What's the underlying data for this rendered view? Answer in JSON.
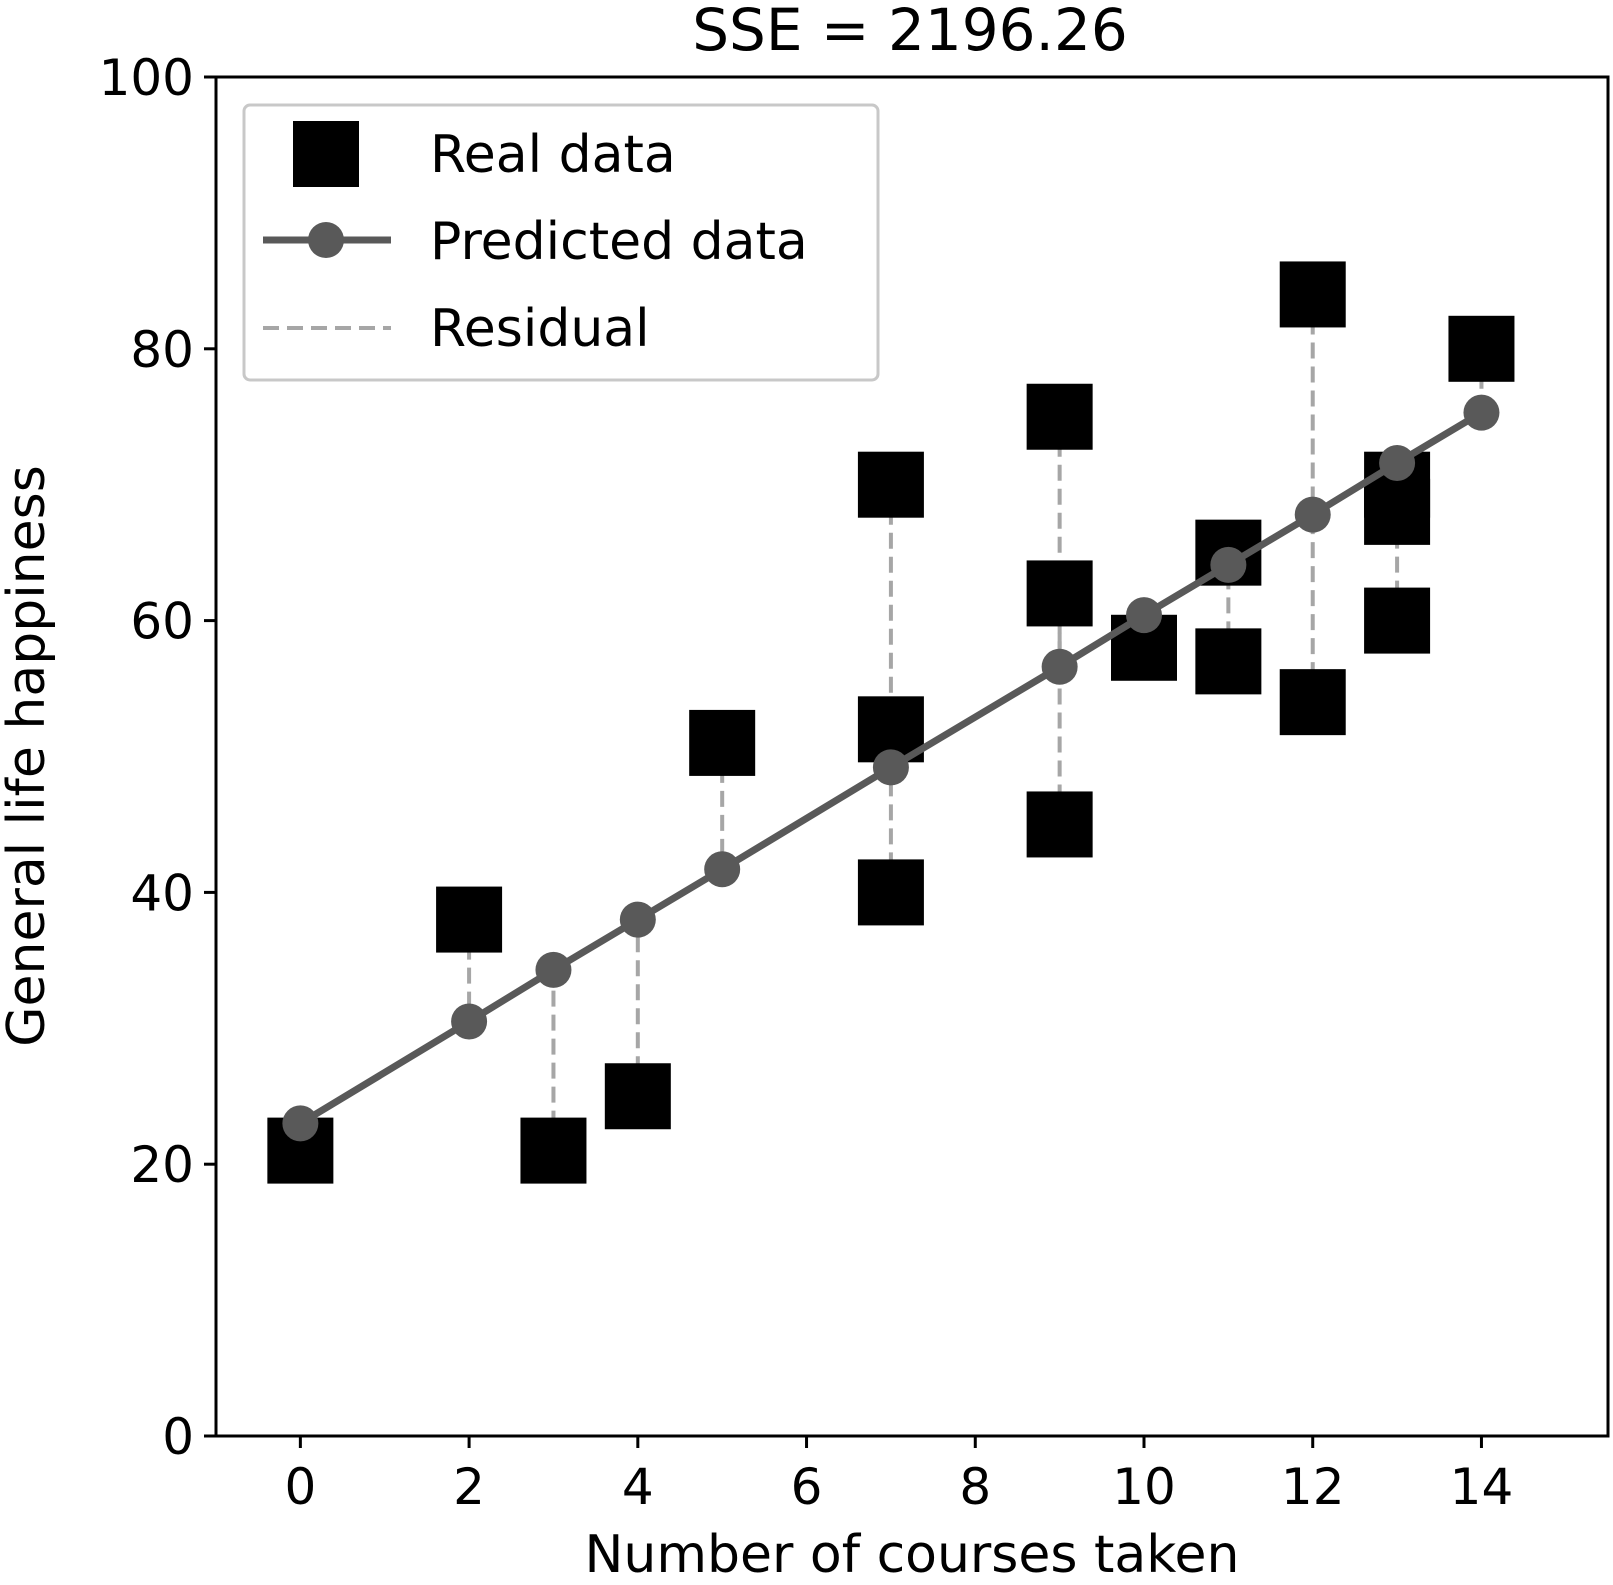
{
  "chart_data": {
    "type": "scatter",
    "title": "SSE = 2196.26",
    "xlabel": "Number of courses taken",
    "ylabel": "General life happiness",
    "xlim": [
      -1,
      15.5
    ],
    "ylim": [
      0,
      100
    ],
    "xticks": [
      "0",
      "2",
      "4",
      "6",
      "8",
      "10",
      "12",
      "14"
    ],
    "yticks": [
      "0",
      "20",
      "40",
      "60",
      "80",
      "100"
    ],
    "legend_position": "top-left",
    "grid": false,
    "colors": {
      "real": "#000000",
      "predicted": "#595959",
      "residual": "#a6a6a6"
    },
    "series": [
      {
        "name": "Real data",
        "marker": "square",
        "points": [
          [
            0,
            21
          ],
          [
            2,
            38
          ],
          [
            3,
            21
          ],
          [
            4,
            25
          ],
          [
            5,
            51
          ],
          [
            7,
            70
          ],
          [
            7,
            52
          ],
          [
            7,
            40
          ],
          [
            9,
            75
          ],
          [
            9,
            62
          ],
          [
            9,
            45
          ],
          [
            10,
            58
          ],
          [
            11,
            65
          ],
          [
            11,
            57
          ],
          [
            12,
            84
          ],
          [
            12,
            54
          ],
          [
            13,
            70
          ],
          [
            13,
            68
          ],
          [
            13,
            60
          ],
          [
            14,
            80
          ]
        ]
      },
      {
        "name": "Predicted data",
        "marker": "circle-line",
        "points": [
          [
            0,
            23
          ],
          [
            2,
            30.5
          ],
          [
            3,
            34.3
          ],
          [
            4,
            38
          ],
          [
            5,
            41.7
          ],
          [
            7,
            49.2
          ],
          [
            9,
            56.6
          ],
          [
            10,
            60.4
          ],
          [
            11,
            64.1
          ],
          [
            12,
            67.8
          ],
          [
            13,
            71.6
          ],
          [
            14,
            75.3
          ]
        ]
      },
      {
        "name": "Residual",
        "marker": "dashed-line"
      }
    ]
  }
}
